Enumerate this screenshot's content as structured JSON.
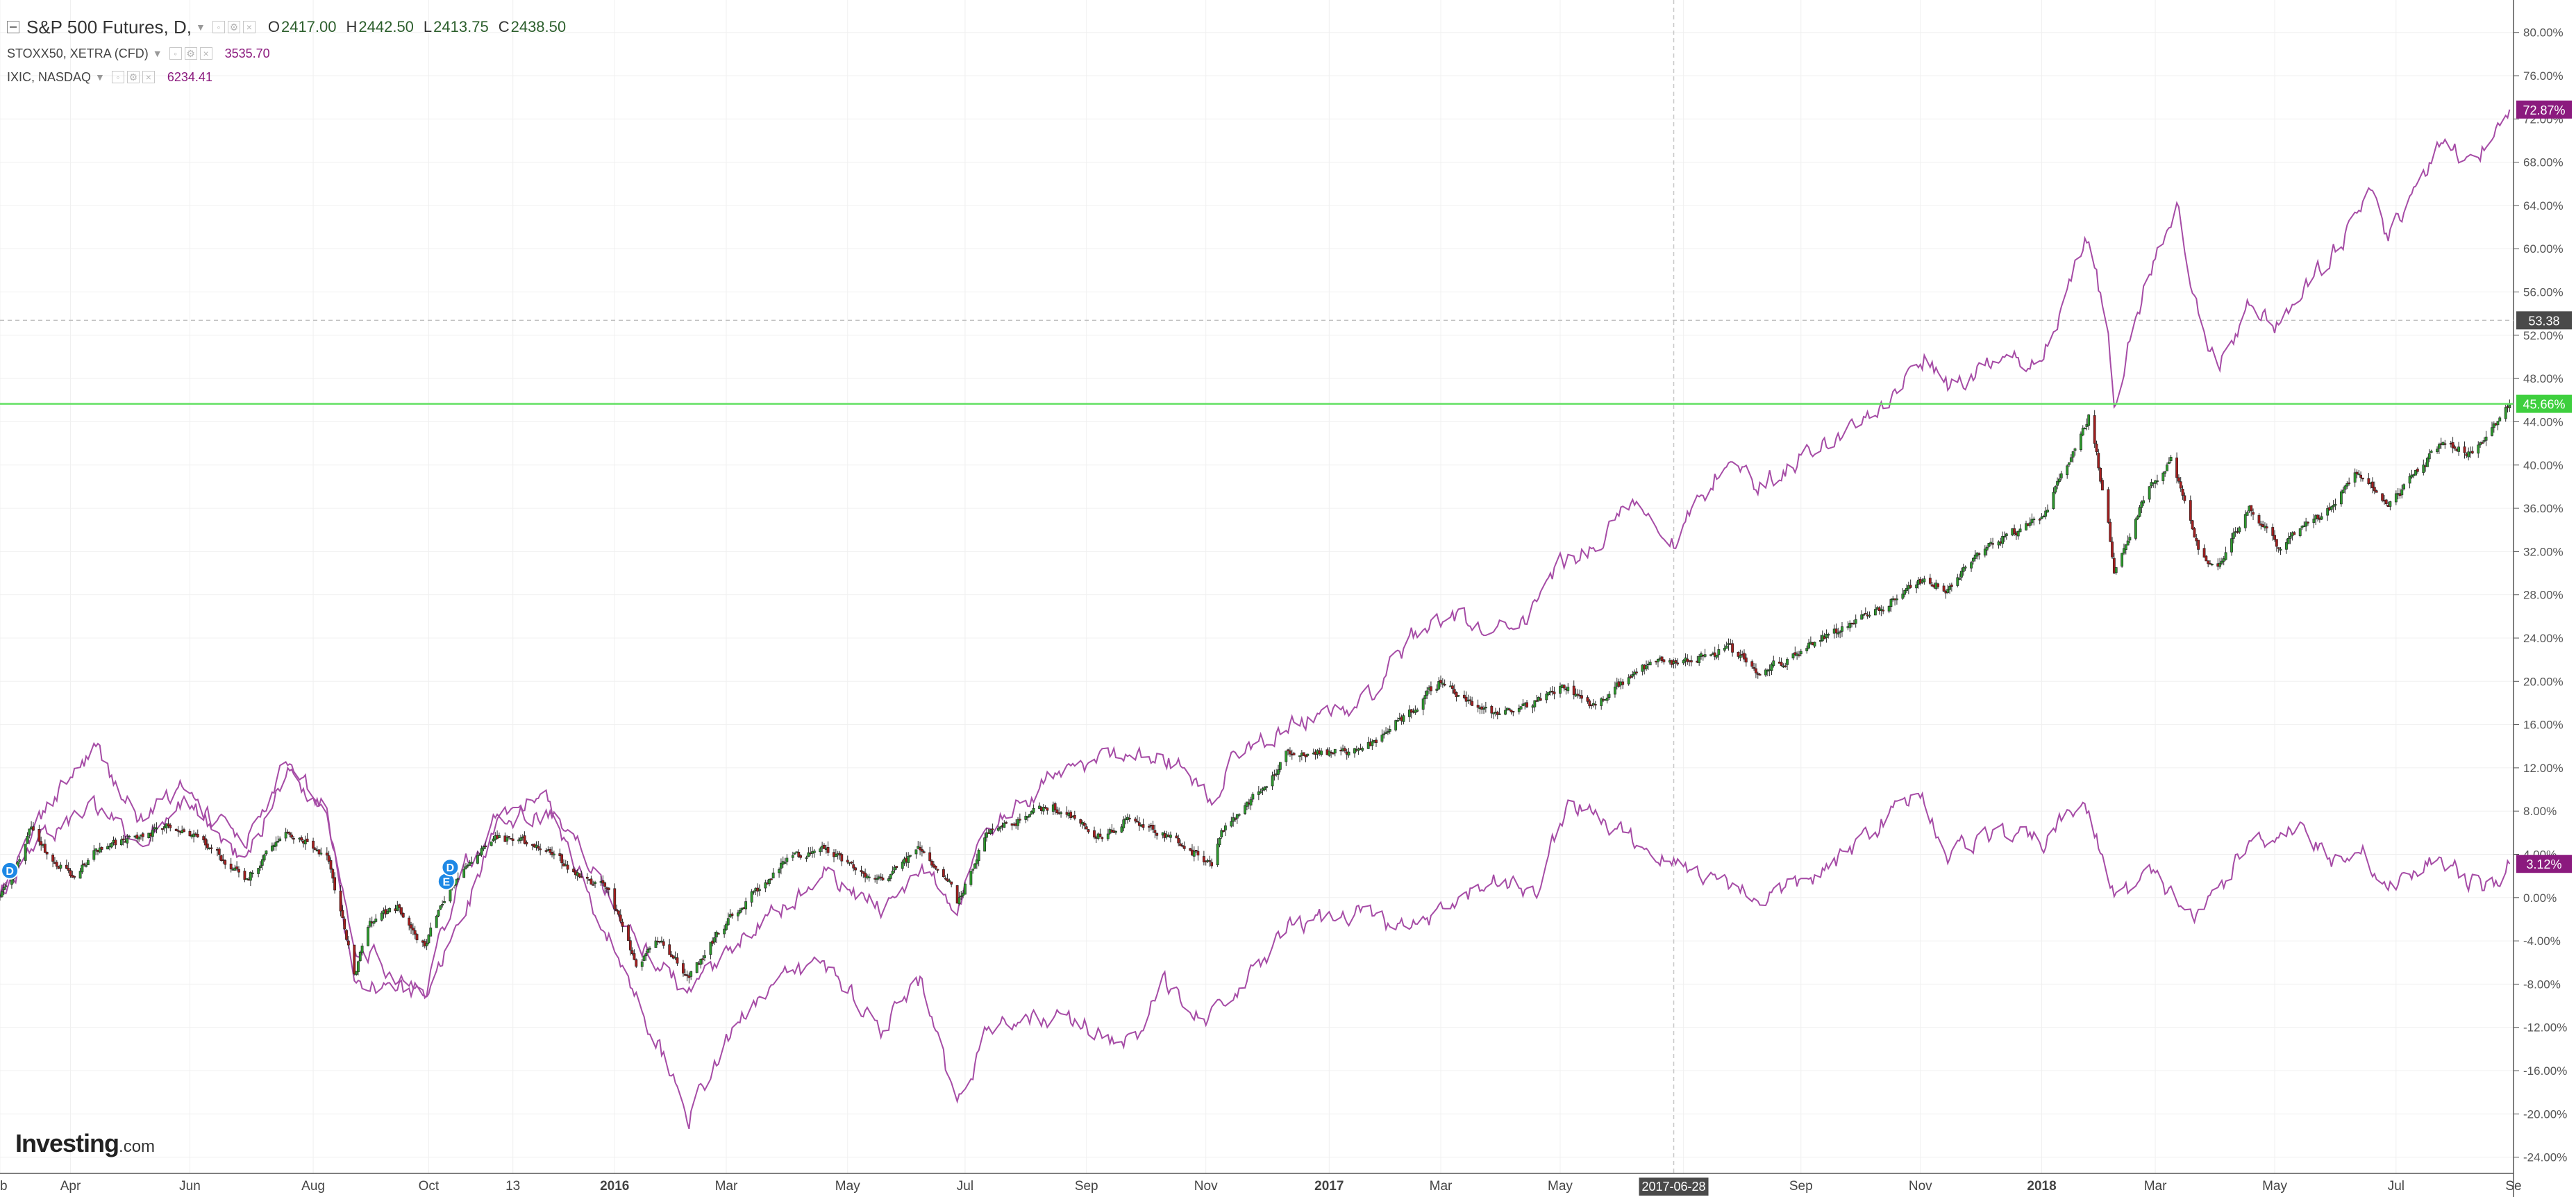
{
  "legend": {
    "main_symbol": "S&P 500 Futures, D,",
    "open_key": "O",
    "open": "2417.00",
    "high_key": "H",
    "high": "2442.50",
    "low_key": "L",
    "low": "2413.75",
    "close_key": "C",
    "close": "2438.50",
    "compare": [
      {
        "symbol": "STOXX50, XETRA (CFD)",
        "value": "3535.70"
      },
      {
        "symbol": "IXIC, NASDAQ",
        "value": "6234.41"
      }
    ]
  },
  "watermark": {
    "brand": "Investing",
    "suffix": ".com"
  },
  "colors": {
    "background": "#ffffff",
    "grid": "#f0f0f0",
    "up_candle": "#2e9a2e",
    "down_candle": "#a41e1e",
    "compare_series": "#a64ca6",
    "compare_badge": "#8b1a7e",
    "price_line": "#63e063",
    "price_badge": "#3ecf3e",
    "crosshair": "#c8c8c8",
    "dashed_level": "#c0c0c0",
    "level_badge": "#4a4a4a",
    "date_badge": "#4a4a4a",
    "event_marker": "#1e88e5"
  },
  "chart_data": {
    "type": "line",
    "y_scale": "percent",
    "ylim": [
      -25.5,
      83
    ],
    "xlim": [
      "2015-02-24",
      "2018-08-31"
    ],
    "y_ticks": [
      "80.00%",
      "76.00%",
      "72.00%",
      "68.00%",
      "64.00%",
      "60.00%",
      "56.00%",
      "52.00%",
      "48.00%",
      "44.00%",
      "40.00%",
      "36.00%",
      "32.00%",
      "28.00%",
      "24.00%",
      "20.00%",
      "16.00%",
      "12.00%",
      "8.00%",
      "4.00%",
      "0.00%",
      "-4.00%",
      "-8.00%",
      "-12.00%",
      "-16.00%",
      "-20.00%",
      "-24.00%"
    ],
    "x_ticks": [
      {
        "date": "2015-02-24",
        "label": "eb"
      },
      {
        "date": "2015-04-01",
        "label": "Apr"
      },
      {
        "date": "2015-06-01",
        "label": "Jun"
      },
      {
        "date": "2015-08-03",
        "label": "Aug"
      },
      {
        "date": "2015-10-01",
        "label": "Oct"
      },
      {
        "date": "2015-11-13",
        "label": "13"
      },
      {
        "date": "2016-01-04",
        "label": "2016",
        "bold": true
      },
      {
        "date": "2016-03-01",
        "label": "Mar"
      },
      {
        "date": "2016-05-02",
        "label": "May"
      },
      {
        "date": "2016-07-01",
        "label": "Jul"
      },
      {
        "date": "2016-09-01",
        "label": "Sep"
      },
      {
        "date": "2016-11-01",
        "label": "Nov"
      },
      {
        "date": "2017-01-03",
        "label": "2017",
        "bold": true
      },
      {
        "date": "2017-03-01",
        "label": "Mar"
      },
      {
        "date": "2017-05-01",
        "label": "May"
      },
      {
        "date": "2017-07-03",
        "label": "Jul"
      },
      {
        "date": "2017-09-01",
        "label": "Sep"
      },
      {
        "date": "2017-11-01",
        "label": "Nov"
      },
      {
        "date": "2018-01-02",
        "label": "2018",
        "bold": true
      },
      {
        "date": "2018-03-01",
        "label": "Mar"
      },
      {
        "date": "2018-05-01",
        "label": "May"
      },
      {
        "date": "2018-07-02",
        "label": "Jul"
      },
      {
        "date": "2018-08-31",
        "label": "Se"
      }
    ],
    "crosshair": {
      "date": "2017-06-28",
      "label": "2017-06-28"
    },
    "dashed_level": {
      "y": 53.38,
      "label": "53.38"
    },
    "event_markers": [
      {
        "date": "2015-03-01",
        "y": 2.5,
        "letter": "D"
      },
      {
        "date": "2015-10-10",
        "y": 1.5,
        "letter": "E"
      },
      {
        "date": "2015-10-12",
        "y": 2.8,
        "letter": "D"
      }
    ],
    "series": [
      {
        "name": "S&P 500 Futures",
        "type": "candlestick",
        "last_label": "45.66%",
        "last": 45.66,
        "values": [
          [
            "2015-02-24",
            0.0
          ],
          [
            "2015-03-05",
            3.0
          ],
          [
            "2015-03-12",
            6.5
          ],
          [
            "2015-03-20",
            4.0
          ],
          [
            "2015-04-01",
            2.0
          ],
          [
            "2015-04-15",
            4.5
          ],
          [
            "2015-05-01",
            5.5
          ],
          [
            "2015-05-20",
            6.5
          ],
          [
            "2015-06-10",
            5.0
          ],
          [
            "2015-06-29",
            1.5
          ],
          [
            "2015-07-20",
            6.0
          ],
          [
            "2015-08-10",
            4.0
          ],
          [
            "2015-08-24",
            -7.0
          ],
          [
            "2015-09-01",
            -2.5
          ],
          [
            "2015-09-15",
            -1.0
          ],
          [
            "2015-09-29",
            -4.5
          ],
          [
            "2015-10-10",
            0.5
          ],
          [
            "2015-10-25",
            4.0
          ],
          [
            "2015-11-03",
            5.5
          ],
          [
            "2015-11-20",
            5.0
          ],
          [
            "2015-12-04",
            4.0
          ],
          [
            "2015-12-17",
            2.0
          ],
          [
            "2015-12-31",
            1.0
          ],
          [
            "2016-01-15",
            -6.0
          ],
          [
            "2016-01-27",
            -4.0
          ],
          [
            "2016-02-11",
            -7.5
          ],
          [
            "2016-02-25",
            -3.5
          ],
          [
            "2016-03-15",
            0.5
          ],
          [
            "2016-04-01",
            3.5
          ],
          [
            "2016-04-20",
            4.5
          ],
          [
            "2016-05-19",
            1.5
          ],
          [
            "2016-06-08",
            4.5
          ],
          [
            "2016-06-24",
            1.0
          ],
          [
            "2016-06-27",
            -0.5
          ],
          [
            "2016-07-12",
            6.0
          ],
          [
            "2016-08-15",
            8.5
          ],
          [
            "2016-09-09",
            5.5
          ],
          [
            "2016-09-22",
            7.5
          ],
          [
            "2016-10-20",
            5.0
          ],
          [
            "2016-11-04",
            3.0
          ],
          [
            "2016-11-09",
            6.0
          ],
          [
            "2016-12-01",
            10.5
          ],
          [
            "2016-12-13",
            13.5
          ],
          [
            "2017-01-20",
            13.5
          ],
          [
            "2017-02-15",
            17.5
          ],
          [
            "2017-03-01",
            20.0
          ],
          [
            "2017-03-22",
            17.0
          ],
          [
            "2017-04-13",
            17.5
          ],
          [
            "2017-05-01",
            19.5
          ],
          [
            "2017-05-17",
            18.0
          ],
          [
            "2017-06-19",
            22.0
          ],
          [
            "2017-06-29",
            21.5
          ],
          [
            "2017-07-26",
            23.0
          ],
          [
            "2017-08-10",
            21.0
          ],
          [
            "2017-08-25",
            22.0
          ],
          [
            "2017-09-12",
            24.0
          ],
          [
            "2017-10-05",
            26.0
          ],
          [
            "2017-11-03",
            29.5
          ],
          [
            "2017-11-15",
            28.5
          ],
          [
            "2017-12-04",
            32.5
          ],
          [
            "2018-01-02",
            35.0
          ],
          [
            "2018-01-26",
            44.5
          ],
          [
            "2018-02-05",
            35.0
          ],
          [
            "2018-02-08",
            30.0
          ],
          [
            "2018-02-26",
            38.0
          ],
          [
            "2018-03-09",
            40.5
          ],
          [
            "2018-03-23",
            32.0
          ],
          [
            "2018-04-02",
            30.5
          ],
          [
            "2018-04-18",
            36.0
          ],
          [
            "2018-05-03",
            32.5
          ],
          [
            "2018-05-29",
            36.0
          ],
          [
            "2018-06-13",
            39.5
          ],
          [
            "2018-06-28",
            36.0
          ],
          [
            "2018-07-25",
            42.0
          ],
          [
            "2018-08-10",
            41.0
          ],
          [
            "2018-08-29",
            45.66
          ]
        ]
      },
      {
        "name": "STOXX50, XETRA (CFD)",
        "type": "line",
        "last_label": "3.12%",
        "last": 3.12,
        "values": [
          [
            "2015-02-24",
            0.0
          ],
          [
            "2015-03-16",
            7.0
          ],
          [
            "2015-04-13",
            14.0
          ],
          [
            "2015-05-06",
            7.0
          ],
          [
            "2015-05-27",
            10.0
          ],
          [
            "2015-06-29",
            3.0
          ],
          [
            "2015-07-20",
            12.0
          ],
          [
            "2015-08-10",
            8.0
          ],
          [
            "2015-08-24",
            -4.0
          ],
          [
            "2015-09-29",
            -9.5
          ],
          [
            "2015-10-20",
            -1.0
          ],
          [
            "2015-11-03",
            6.0
          ],
          [
            "2015-11-30",
            10.0
          ],
          [
            "2015-12-15",
            3.0
          ],
          [
            "2016-01-20",
            -11.0
          ],
          [
            "2016-02-11",
            -20.0
          ],
          [
            "2016-03-15",
            -9.0
          ],
          [
            "2016-04-20",
            -6.0
          ],
          [
            "2016-05-19",
            -12.0
          ],
          [
            "2016-06-08",
            -8.0
          ],
          [
            "2016-06-27",
            -20.0
          ],
          [
            "2016-07-12",
            -12.0
          ],
          [
            "2016-08-15",
            -11.0
          ],
          [
            "2016-09-26",
            -13.5
          ],
          [
            "2016-10-10",
            -8.0
          ],
          [
            "2016-11-04",
            -11.0
          ],
          [
            "2016-11-15",
            -9.5
          ],
          [
            "2016-12-13",
            -3.0
          ],
          [
            "2017-01-17",
            -1.0
          ],
          [
            "2017-02-06",
            -3.0
          ],
          [
            "2017-03-01",
            -2.0
          ],
          [
            "2017-03-28",
            2.0
          ],
          [
            "2017-04-18",
            0.0
          ],
          [
            "2017-05-05",
            9.0
          ],
          [
            "2017-05-31",
            6.0
          ],
          [
            "2017-06-29",
            3.0
          ],
          [
            "2017-07-20",
            2.0
          ],
          [
            "2017-08-10",
            0.0
          ],
          [
            "2017-08-29",
            1.0
          ],
          [
            "2017-09-19",
            3.0
          ],
          [
            "2017-10-05",
            6.0
          ],
          [
            "2017-11-01",
            10.0
          ],
          [
            "2017-11-15",
            4.0
          ],
          [
            "2017-12-04",
            6.0
          ],
          [
            "2018-01-02",
            5.0
          ],
          [
            "2018-01-23",
            9.0
          ],
          [
            "2018-02-09",
            0.0
          ],
          [
            "2018-02-26",
            2.0
          ],
          [
            "2018-03-23",
            -2.0
          ],
          [
            "2018-04-18",
            5.0
          ],
          [
            "2018-05-15",
            7.0
          ],
          [
            "2018-05-29",
            3.0
          ],
          [
            "2018-06-13",
            5.0
          ],
          [
            "2018-06-28",
            0.5
          ],
          [
            "2018-07-25",
            4.0
          ],
          [
            "2018-08-15",
            0.5
          ],
          [
            "2018-08-29",
            3.12
          ]
        ]
      },
      {
        "name": "IXIC, NASDAQ",
        "type": "line",
        "last_label": "72.87%",
        "last": 72.87,
        "values": [
          [
            "2015-02-24",
            0.0
          ],
          [
            "2015-03-16",
            6.0
          ],
          [
            "2015-04-13",
            8.0
          ],
          [
            "2015-05-06",
            5.0
          ],
          [
            "2015-05-27",
            9.0
          ],
          [
            "2015-06-29",
            5.0
          ],
          [
            "2015-07-20",
            12.0
          ],
          [
            "2015-08-10",
            8.0
          ],
          [
            "2015-08-24",
            -8.0
          ],
          [
            "2015-09-29",
            -8.5
          ],
          [
            "2015-10-20",
            3.0
          ],
          [
            "2015-11-03",
            7.0
          ],
          [
            "2015-11-30",
            8.0
          ],
          [
            "2015-12-15",
            5.0
          ],
          [
            "2016-01-20",
            -5.0
          ],
          [
            "2016-02-11",
            -9.0
          ],
          [
            "2016-03-15",
            -3.0
          ],
          [
            "2016-04-20",
            2.0
          ],
          [
            "2016-05-19",
            -1.0
          ],
          [
            "2016-06-08",
            3.0
          ],
          [
            "2016-06-27",
            -1.0
          ],
          [
            "2016-07-12",
            6.0
          ],
          [
            "2016-08-15",
            11.0
          ],
          [
            "2016-09-22",
            14.0
          ],
          [
            "2016-10-20",
            12.0
          ],
          [
            "2016-11-04",
            9.0
          ],
          [
            "2016-11-15",
            13.0
          ],
          [
            "2016-12-13",
            16.0
          ],
          [
            "2017-01-20",
            18.0
          ],
          [
            "2017-02-15",
            24.0
          ],
          [
            "2017-03-01",
            26.0
          ],
          [
            "2017-03-22",
            25.0
          ],
          [
            "2017-04-13",
            26.0
          ],
          [
            "2017-05-01",
            31.0
          ],
          [
            "2017-05-17",
            32.0
          ],
          [
            "2017-06-08",
            37.0
          ],
          [
            "2017-06-29",
            33.0
          ],
          [
            "2017-07-26",
            41.0
          ],
          [
            "2017-08-10",
            38.0
          ],
          [
            "2017-08-25",
            40.0
          ],
          [
            "2017-09-12",
            42.0
          ],
          [
            "2017-10-05",
            44.0
          ],
          [
            "2017-11-03",
            50.0
          ],
          [
            "2017-11-15",
            47.0
          ],
          [
            "2017-12-04",
            49.0
          ],
          [
            "2018-01-02",
            50.0
          ],
          [
            "2018-01-26",
            61.0
          ],
          [
            "2018-02-05",
            52.0
          ],
          [
            "2018-02-08",
            46.0
          ],
          [
            "2018-02-26",
            58.0
          ],
          [
            "2018-03-12",
            64.0
          ],
          [
            "2018-03-23",
            54.0
          ],
          [
            "2018-04-02",
            49.0
          ],
          [
            "2018-04-18",
            55.0
          ],
          [
            "2018-05-03",
            53.0
          ],
          [
            "2018-05-29",
            59.0
          ],
          [
            "2018-06-20",
            65.0
          ],
          [
            "2018-06-28",
            61.0
          ],
          [
            "2018-07-25",
            70.0
          ],
          [
            "2018-08-10",
            68.0
          ],
          [
            "2018-08-29",
            72.87
          ]
        ]
      }
    ]
  }
}
